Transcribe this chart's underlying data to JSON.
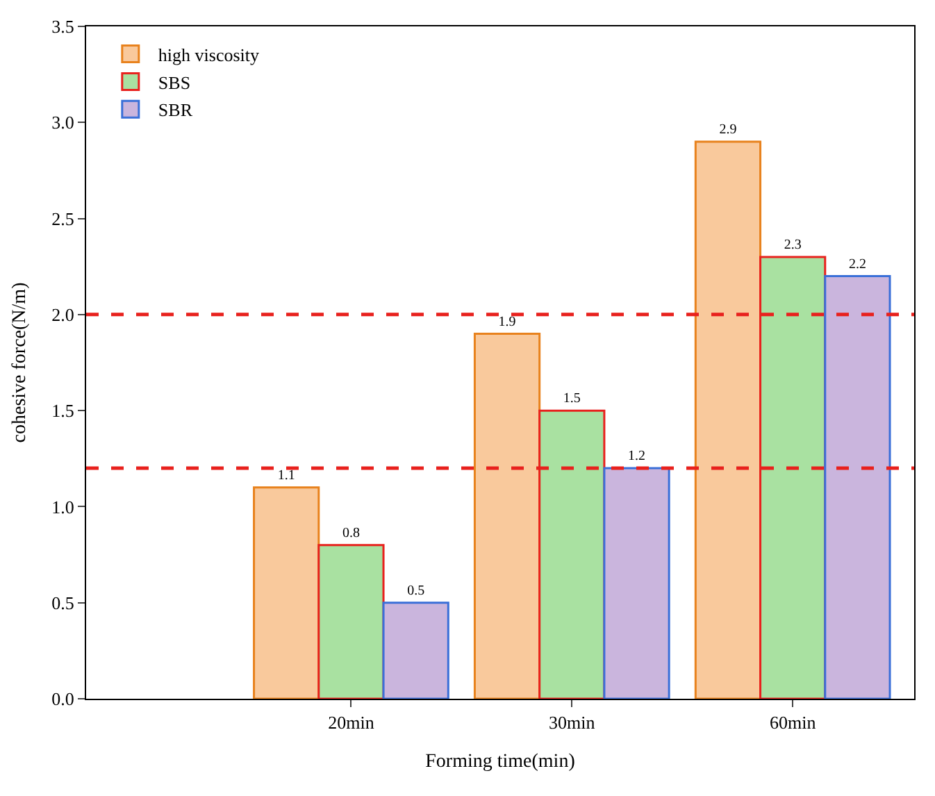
{
  "chart_data": {
    "type": "bar",
    "xlabel": "Forming time(min)",
    "ylabel": "cohesive force(N/m)",
    "categories": [
      "20min",
      "30min",
      "60min"
    ],
    "series": [
      {
        "name": "high viscosity",
        "color": "#f9c99c",
        "values": [
          1.1,
          1.9,
          2.9
        ]
      },
      {
        "name": "SBS",
        "color": "#a9e1a1",
        "values": [
          0.8,
          1.5,
          2.3
        ]
      },
      {
        "name": "SBR",
        "color": "#cab5dd",
        "values": [
          0.5,
          1.2,
          2.2
        ]
      }
    ],
    "ylim": [
      0,
      3.5
    ],
    "yticks": [
      {
        "value": 0,
        "label": "0.0"
      },
      {
        "value": 0.5,
        "label": "0.5"
      },
      {
        "value": 1,
        "label": "1.0"
      },
      {
        "value": 1.5,
        "label": "1.5"
      },
      {
        "value": 2,
        "label": "2.0"
      },
      {
        "value": 2.5,
        "label": "2.5"
      },
      {
        "value": 3,
        "label": "3.0"
      },
      {
        "value": 3.5,
        "label": "3.5"
      }
    ],
    "ref_lines": [
      {
        "axis": "y",
        "value": 2.0,
        "color": "#e8211d",
        "line_style": "dashed"
      },
      {
        "axis": "y",
        "value": 1.2,
        "color": "#e8211d",
        "line_style": "dashed"
      }
    ],
    "data_labels": true,
    "legend": "top left"
  }
}
